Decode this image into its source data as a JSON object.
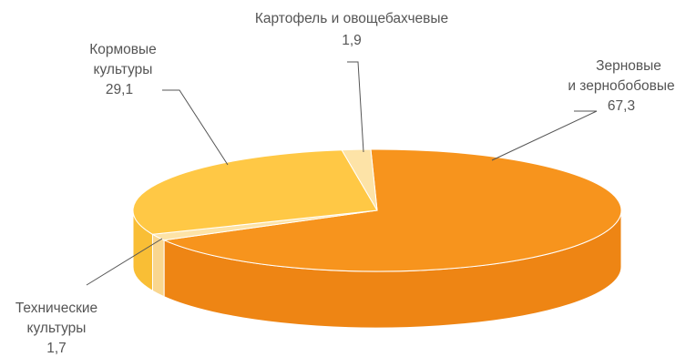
{
  "chart_data": {
    "type": "pie",
    "title": "",
    "slices": [
      {
        "label_lines": [
          "Зерновые",
          "и зернобобовые"
        ],
        "value": 67.3,
        "value_text": "67,3",
        "color": "#F7941D",
        "side_color": "#EE8514"
      },
      {
        "label_lines": [
          "Технические",
          "культуры"
        ],
        "value": 1.7,
        "value_text": "1,7",
        "color": "#FDE3A7",
        "side_color": "#F9D68F"
      },
      {
        "label_lines": [
          "Кормовые",
          "культуры"
        ],
        "value": 29.1,
        "value_text": "29,1",
        "color": "#FFC845",
        "side_color": "#F9BE35"
      },
      {
        "label_lines": [
          "Картофель и овощебахчевые"
        ],
        "value": 1.9,
        "value_text": "1,9",
        "color": "#FDE3A7",
        "side_color": "#F9D68F"
      }
    ],
    "legend": "none",
    "style": "3d-tilted-pie"
  }
}
